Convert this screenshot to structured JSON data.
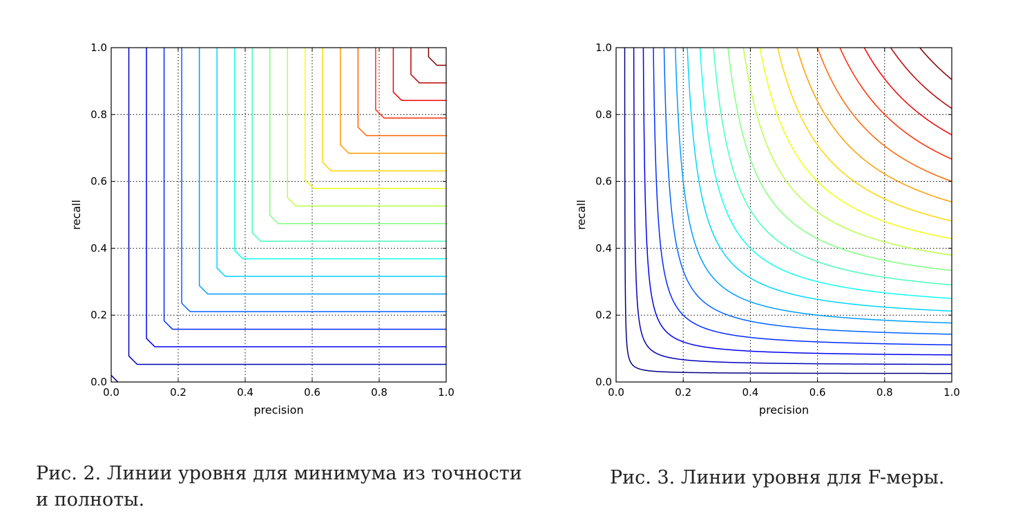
{
  "chart_data": [
    {
      "type": "line",
      "kind": "contour",
      "function": "min(precision, recall)",
      "xlabel": "precision",
      "ylabel": "recall",
      "xlim": [
        0.0,
        1.0
      ],
      "ylim": [
        0.0,
        1.0
      ],
      "xticks": [
        "0.0",
        "0.2",
        "0.4",
        "0.6",
        "0.8",
        "1.0"
      ],
      "yticks": [
        "0.0",
        "0.2",
        "0.4",
        "0.6",
        "0.8",
        "1.0"
      ],
      "grid": true,
      "grid_style": "dotted",
      "colormap": "jet",
      "levels": [
        0.0,
        0.05263,
        0.10526,
        0.15789,
        0.21053,
        0.26316,
        0.31579,
        0.36842,
        0.42105,
        0.47368,
        0.52632,
        0.57895,
        0.63158,
        0.68421,
        0.73684,
        0.78947,
        0.84211,
        0.89474,
        0.94737
      ],
      "caption": "Рис. 2. Линии уровня для минимума из точности и полноты."
    },
    {
      "type": "line",
      "kind": "contour",
      "function": "F = 2*precision*recall/(precision+recall)",
      "xlabel": "precision",
      "ylabel": "recall",
      "xlim": [
        0.0,
        1.0
      ],
      "ylim": [
        0.0,
        1.0
      ],
      "xticks": [
        "0.0",
        "0.2",
        "0.4",
        "0.6",
        "0.8",
        "1.0"
      ],
      "yticks": [
        "0.0",
        "0.2",
        "0.4",
        "0.6",
        "0.8",
        "1.0"
      ],
      "grid": true,
      "grid_style": "dotted",
      "colormap": "jet",
      "levels": [
        0.05,
        0.1,
        0.15,
        0.2,
        0.25,
        0.3,
        0.35,
        0.4,
        0.45,
        0.5,
        0.55,
        0.6,
        0.65,
        0.7,
        0.75,
        0.8,
        0.85,
        0.9,
        0.95
      ],
      "caption": "Рис. 3. Линии уровня для F-меры."
    }
  ]
}
